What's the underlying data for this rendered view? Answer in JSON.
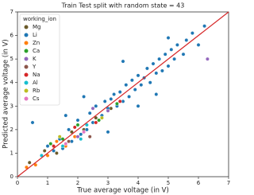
{
  "chart_data": {
    "type": "scatter",
    "title": "Train Test split with random state = 43",
    "x_label": "True average voltage (in V)",
    "y_label": "Predicted average voltage (in V)",
    "legend_title": "working_ion",
    "legend_position": "upper left",
    "xlim": [
      0,
      7
    ],
    "ylim": [
      0,
      7
    ],
    "xticks": [
      0,
      1,
      2,
      3,
      4,
      5,
      6,
      7
    ],
    "yticks": [
      0,
      1,
      2,
      3,
      4,
      5,
      6,
      7
    ],
    "reference_line_color": "#d62728",
    "series": [
      {
        "name": "Mg",
        "color": "#6b5a2a",
        "x": [
          0.9,
          1.3,
          1.8,
          2.2,
          2.6,
          3.1,
          0.4
        ],
        "y": [
          1.1,
          1.0,
          1.9,
          2.0,
          2.5,
          2.9,
          0.6
        ]
      },
      {
        "name": "Li",
        "color": "#1f77b4",
        "x": [
          0.5,
          0.8,
          1.0,
          1.2,
          1.4,
          1.5,
          1.7,
          1.8,
          2.0,
          2.1,
          2.3,
          2.4,
          2.5,
          2.6,
          2.8,
          2.9,
          3.0,
          3.1,
          3.2,
          3.3,
          3.4,
          3.5,
          3.6,
          3.7,
          3.8,
          3.9,
          4.0,
          4.1,
          4.2,
          4.3,
          4.4,
          4.5,
          4.6,
          4.7,
          4.8,
          4.9,
          5.0,
          5.1,
          5.2,
          5.3,
          5.5,
          5.6,
          5.8,
          6.0,
          6.2,
          3.5,
          3.0,
          1.6,
          2.2,
          4.6,
          5.0,
          4.0
        ],
        "y": [
          2.3,
          0.9,
          1.3,
          1.1,
          1.6,
          1.2,
          2.0,
          1.5,
          2.4,
          1.8,
          2.0,
          2.7,
          2.3,
          3.0,
          2.6,
          3.2,
          2.9,
          3.3,
          3.5,
          3.0,
          3.6,
          3.2,
          3.9,
          3.4,
          4.1,
          3.7,
          4.3,
          3.9,
          4.2,
          4.6,
          4.0,
          4.8,
          4.4,
          5.0,
          4.5,
          5.2,
          4.7,
          5.4,
          5.0,
          5.6,
          5.2,
          5.8,
          6.1,
          5.6,
          6.4,
          4.9,
          1.9,
          2.6,
          3.4,
          3.5,
          5.9,
          3.0
        ]
      },
      {
        "name": "Zn",
        "color": "#ff7f0e",
        "x": [
          0.6,
          1.0,
          1.3,
          1.6,
          1.9,
          0.3
        ],
        "y": [
          0.5,
          0.9,
          1.5,
          1.3,
          1.7,
          0.4
        ]
      },
      {
        "name": "Ca",
        "color": "#2ca02c",
        "x": [
          1.1,
          1.5,
          2.0,
          2.7,
          3.3
        ],
        "y": [
          1.4,
          1.6,
          2.2,
          2.4,
          3.1
        ]
      },
      {
        "name": "K",
        "color": "#9467bd",
        "x": [
          2.0,
          2.5,
          3.0,
          6.3
        ],
        "y": [
          1.7,
          2.9,
          2.8,
          5.0
        ]
      },
      {
        "name": "Y",
        "color": "#8c564b",
        "x": [
          1.7,
          2.4
        ],
        "y": [
          1.5,
          1.7
        ]
      },
      {
        "name": "Na",
        "color": "#d62728",
        "x": [
          1.2,
          1.9,
          2.6,
          3.4
        ],
        "y": [
          1.3,
          2.1,
          2.3,
          3.2
        ]
      },
      {
        "name": "Al",
        "color": "#17becf",
        "x": [
          1.5,
          2.3,
          2.1,
          0.8
        ],
        "y": [
          1.3,
          2.2,
          1.6,
          0.9
        ]
      },
      {
        "name": "Rb",
        "color": "#bcbd22",
        "x": [
          1.4,
          2.8
        ],
        "y": [
          1.7,
          2.5
        ]
      },
      {
        "name": "Cs",
        "color": "#e377c2",
        "x": [
          1.6,
          2.2
        ],
        "y": [
          1.4,
          1.9
        ]
      }
    ]
  }
}
